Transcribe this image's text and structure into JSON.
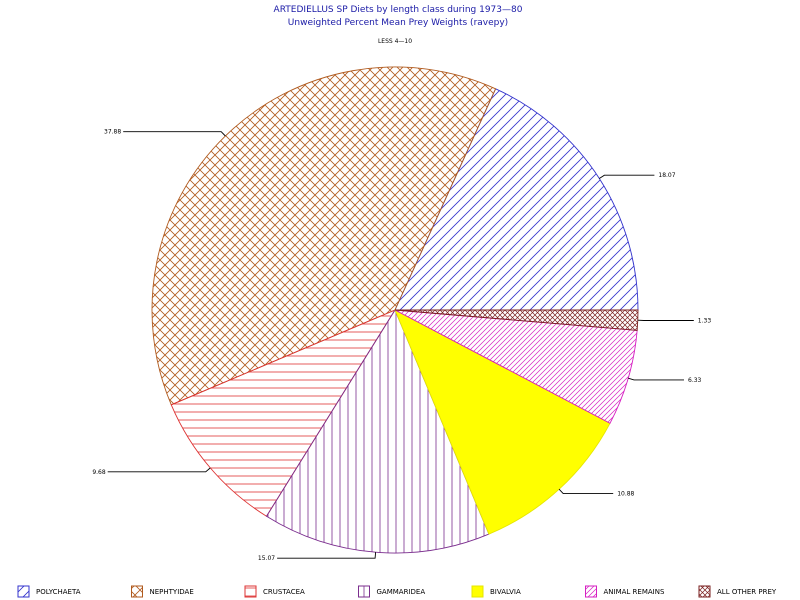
{
  "chart_data": {
    "type": "pie",
    "title": "ARTEDIELLUS SP  Diets by length class during  1973—80",
    "subtitle": "Unweighted Percent Mean Prey Weights (ravepy)",
    "class_label": "LESS 4—10",
    "slices": [
      {
        "name": "POLYCHAETA",
        "value": 18.07,
        "label": "18.07",
        "color": "#3333cc",
        "fill_color": "none",
        "pattern": "diagonal"
      },
      {
        "name": "NEPHTYIDAE",
        "value": 37.88,
        "label": "37.88",
        "color": "#b05a1e",
        "fill_color": "none",
        "pattern": "crosshatch"
      },
      {
        "name": "CRUSTACEA",
        "value": 9.68,
        "label": "9.68",
        "color": "#dd3333",
        "fill_color": "none",
        "pattern": "horizontal"
      },
      {
        "name": "GAMMARIDEA",
        "value": 15.07,
        "label": "15.07",
        "color": "#7b2e8e",
        "fill_color": "none",
        "pattern": "vertical"
      },
      {
        "name": "BIVALVIA",
        "value": 10.88,
        "label": "10.88",
        "color": "#e6e600",
        "fill_color": "#ffff00",
        "pattern": "solid"
      },
      {
        "name": "ANIMAL REMAINS",
        "value": 6.33,
        "label": "6.33",
        "color": "#d61fc2",
        "fill_color": "none",
        "pattern": "diagonal-dense"
      },
      {
        "name": "ALL OTHER PREY",
        "value": 1.33,
        "label": "1.33",
        "color": "#7a1f1f",
        "fill_color": "none",
        "pattern": "crosshatch-dense"
      }
    ],
    "legend_position": "bottom"
  }
}
